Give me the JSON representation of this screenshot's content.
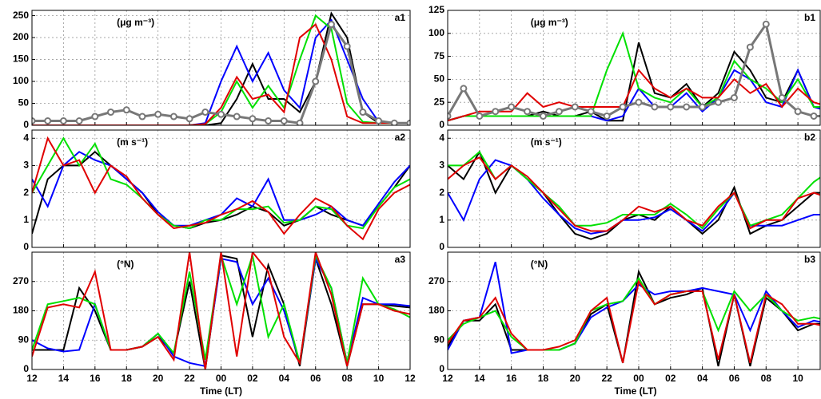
{
  "chart_data": [
    {
      "type": "line",
      "panel_label": "a1",
      "unit": "(μg m⁻³)",
      "x": [
        12,
        13,
        14,
        15,
        16,
        17,
        18,
        19,
        20,
        21,
        22,
        23,
        24,
        25,
        26,
        27,
        28,
        29,
        30,
        31,
        32,
        33,
        34,
        35,
        36
      ],
      "xlim": [
        12,
        36
      ],
      "xticks": [
        12,
        14,
        16,
        18,
        20,
        22,
        24,
        26,
        28,
        30,
        32,
        34
      ],
      "ylim": [
        0,
        262
      ],
      "yticks": [
        0,
        50,
        100,
        150,
        200,
        250
      ],
      "grid": true,
      "series": [
        {
          "color": "#000000",
          "values": [
            0,
            0,
            0,
            0,
            0,
            0,
            0,
            0,
            0,
            0,
            0,
            0,
            5,
            60,
            140,
            60,
            60,
            30,
            100,
            255,
            200,
            30,
            5,
            5,
            5
          ]
        },
        {
          "color": "#0000ff",
          "values": [
            0,
            0,
            0,
            0,
            0,
            0,
            0,
            0,
            0,
            0,
            0,
            5,
            100,
            180,
            100,
            165,
            80,
            40,
            200,
            240,
            150,
            60,
            8,
            5,
            5
          ]
        },
        {
          "color": "#00e000",
          "values": [
            0,
            0,
            0,
            0,
            0,
            0,
            0,
            0,
            0,
            0,
            0,
            3,
            30,
            100,
            40,
            90,
            40,
            150,
            250,
            220,
            50,
            8,
            5,
            5,
            5
          ]
        },
        {
          "color": "#e00000",
          "values": [
            0,
            0,
            0,
            0,
            0,
            0,
            0,
            0,
            0,
            0,
            0,
            3,
            40,
            110,
            60,
            70,
            30,
            200,
            230,
            150,
            20,
            5,
            5,
            5,
            5
          ]
        },
        {
          "color": "#777777",
          "marker": "circle",
          "values": [
            10,
            10,
            10,
            10,
            20,
            30,
            35,
            20,
            25,
            20,
            15,
            30,
            25,
            20,
            15,
            10,
            10,
            5,
            100,
            230,
            180,
            30,
            10,
            5,
            5
          ]
        }
      ]
    },
    {
      "type": "line",
      "panel_label": "a2",
      "unit": "(m s⁻¹)",
      "x": [
        12,
        13,
        14,
        15,
        16,
        17,
        18,
        19,
        20,
        21,
        22,
        23,
        24,
        25,
        26,
        27,
        28,
        29,
        30,
        31,
        32,
        33,
        34,
        35,
        36
      ],
      "xlim": [
        12,
        36
      ],
      "xticks": [
        12,
        14,
        16,
        18,
        20,
        22,
        24,
        26,
        28,
        30,
        32,
        34
      ],
      "ylim": [
        0,
        4.3
      ],
      "yticks": [
        0,
        1,
        2,
        3,
        4
      ],
      "grid": true,
      "series": [
        {
          "color": "#000000",
          "values": [
            0.5,
            2.5,
            3,
            3,
            3.5,
            3,
            2.5,
            2,
            1.2,
            0.8,
            0.7,
            0.9,
            1,
            1.2,
            1.5,
            1.3,
            0.8,
            1,
            1.5,
            1.2,
            1,
            0.8,
            1.5,
            2.2,
            3
          ]
        },
        {
          "color": "#0000ff",
          "values": [
            2.5,
            1.5,
            3,
            3.5,
            3.2,
            3,
            2.5,
            2,
            1.3,
            0.8,
            0.8,
            1,
            1.2,
            1.8,
            1.5,
            2.5,
            1,
            1,
            1.2,
            1.5,
            1,
            0.8,
            1.6,
            2.4,
            3
          ]
        },
        {
          "color": "#00e000",
          "values": [
            2,
            3,
            4,
            3,
            3.8,
            2.5,
            2.3,
            1.8,
            1.2,
            0.8,
            0.7,
            1,
            1,
            1.4,
            1.4,
            1.5,
            0.9,
            1,
            1.5,
            1.4,
            0.8,
            0.7,
            1.5,
            2.2,
            2.5
          ]
        },
        {
          "color": "#e00000",
          "values": [
            2,
            4,
            3,
            3.2,
            2,
            3,
            2.6,
            1.8,
            1.2,
            0.7,
            0.8,
            0.9,
            1.2,
            1.4,
            1.7,
            1.3,
            0.5,
            1.2,
            1.8,
            1.5,
            0.8,
            0.3,
            1.4,
            2,
            2.3
          ]
        }
      ]
    },
    {
      "type": "line",
      "panel_label": "a3",
      "unit": "(°N)",
      "xlabel": "Time (LT)",
      "x": [
        12,
        13,
        14,
        15,
        16,
        17,
        18,
        19,
        20,
        21,
        22,
        23,
        24,
        25,
        26,
        27,
        28,
        29,
        30,
        31,
        32,
        33,
        34,
        35,
        36
      ],
      "xlim": [
        12,
        36
      ],
      "xticks": [
        12,
        14,
        16,
        18,
        20,
        22,
        {
          "value": 24,
          "label": "00"
        },
        {
          "value": 26,
          "label": "02"
        },
        {
          "value": 28,
          "label": "04"
        },
        {
          "value": 30,
          "label": "06"
        },
        {
          "value": 32,
          "label": "08"
        },
        {
          "value": 34,
          "label": "10"
        },
        {
          "value": 36,
          "label": "12"
        }
      ],
      "ylim": [
        0,
        360
      ],
      "yticks": [
        0,
        90,
        180,
        270
      ],
      "grid": true,
      "series": [
        {
          "color": "#000000",
          "values": [
            60,
            60,
            60,
            250,
            180,
            60,
            60,
            70,
            100,
            50,
            270,
            0,
            350,
            340,
            100,
            320,
            200,
            10,
            340,
            200,
            10,
            200,
            200,
            195,
            190
          ]
        },
        {
          "color": "#0000ff",
          "values": [
            90,
            65,
            55,
            60,
            200,
            60,
            60,
            70,
            110,
            40,
            20,
            10,
            340,
            330,
            200,
            280,
            180,
            20,
            340,
            250,
            20,
            220,
            200,
            200,
            195
          ]
        },
        {
          "color": "#00e000",
          "values": [
            60,
            200,
            210,
            220,
            200,
            60,
            60,
            70,
            110,
            50,
            300,
            30,
            350,
            200,
            350,
            100,
            200,
            20,
            350,
            250,
            20,
            280,
            200,
            185,
            160
          ]
        },
        {
          "color": "#e00000",
          "values": [
            40,
            190,
            200,
            190,
            300,
            60,
            60,
            70,
            100,
            30,
            360,
            0,
            360,
            40,
            360,
            300,
            100,
            20,
            360,
            230,
            10,
            200,
            200,
            180,
            170
          ]
        }
      ]
    },
    {
      "type": "line",
      "panel_label": "b1",
      "unit": "(μg m⁻³)",
      "x": [
        12,
        13,
        14,
        15,
        16,
        17,
        18,
        19,
        20,
        21,
        22,
        23,
        24,
        25,
        26,
        27,
        28,
        29,
        30,
        31,
        32,
        33,
        34,
        35,
        36
      ],
      "xlim": [
        12,
        35.4
      ],
      "xticks": [
        12,
        14,
        16,
        18,
        20,
        22,
        24,
        26,
        28,
        30,
        32,
        34
      ],
      "ylim": [
        0,
        125
      ],
      "yticks": [
        0,
        25,
        50,
        75,
        100,
        125
      ],
      "grid": true,
      "series": [
        {
          "color": "#000000",
          "values": [
            5,
            10,
            10,
            10,
            10,
            10,
            15,
            10,
            10,
            15,
            5,
            5,
            90,
            35,
            30,
            45,
            20,
            35,
            80,
            60,
            30,
            25,
            60,
            20,
            20
          ]
        },
        {
          "color": "#0000ff",
          "values": [
            5,
            10,
            10,
            10,
            10,
            10,
            10,
            10,
            10,
            10,
            5,
            10,
            40,
            20,
            20,
            35,
            15,
            30,
            60,
            50,
            25,
            20,
            60,
            20,
            15
          ]
        },
        {
          "color": "#00e000",
          "values": [
            5,
            10,
            10,
            10,
            10,
            10,
            10,
            10,
            10,
            10,
            60,
            100,
            40,
            30,
            25,
            40,
            20,
            30,
            70,
            50,
            40,
            25,
            50,
            20,
            20
          ]
        },
        {
          "color": "#e00000",
          "values": [
            5,
            10,
            15,
            15,
            15,
            35,
            20,
            25,
            20,
            20,
            20,
            20,
            60,
            40,
            30,
            40,
            30,
            30,
            50,
            35,
            45,
            20,
            40,
            25,
            20
          ]
        },
        {
          "color": "#777777",
          "marker": "circle",
          "values": [
            10,
            40,
            10,
            15,
            20,
            15,
            10,
            15,
            20,
            15,
            10,
            20,
            25,
            20,
            20,
            20,
            20,
            25,
            30,
            85,
            110,
            30,
            15,
            10,
            10
          ]
        }
      ]
    },
    {
      "type": "line",
      "panel_label": "b2",
      "unit": "(m s⁻¹)",
      "x": [
        12,
        13,
        14,
        15,
        16,
        17,
        18,
        19,
        20,
        21,
        22,
        23,
        24,
        25,
        26,
        27,
        28,
        29,
        30,
        31,
        32,
        33,
        34,
        35,
        36
      ],
      "xlim": [
        12,
        35.4
      ],
      "xticks": [
        12,
        14,
        16,
        18,
        20,
        22,
        24,
        26,
        28,
        30,
        32,
        34
      ],
      "ylim": [
        0,
        4.3
      ],
      "yticks": [
        0,
        1,
        2,
        3,
        4
      ],
      "grid": true,
      "series": [
        {
          "color": "#000000",
          "values": [
            3,
            2.5,
            3.5,
            2,
            3,
            2.5,
            2,
            1.2,
            0.5,
            0.3,
            0.5,
            1,
            1.2,
            1,
            1.5,
            1,
            0.5,
            1,
            2.2,
            0.5,
            0.8,
            1,
            1.5,
            2,
            2
          ]
        },
        {
          "color": "#0000ff",
          "values": [
            2,
            1,
            2.5,
            3.2,
            3,
            2.5,
            1.8,
            1.2,
            0.7,
            0.5,
            0.6,
            1,
            1,
            1.1,
            1.4,
            1,
            0.6,
            1.2,
            2,
            0.8,
            0.8,
            0.8,
            1,
            1.2,
            1.2
          ]
        },
        {
          "color": "#00e000",
          "values": [
            3,
            3,
            3.5,
            2.5,
            3,
            2.5,
            2,
            1.5,
            0.8,
            0.8,
            0.9,
            1.2,
            1.2,
            1.2,
            1.6,
            1.2,
            0.7,
            1.4,
            2,
            0.8,
            1,
            1.2,
            1.8,
            2.4,
            2.8
          ]
        },
        {
          "color": "#e00000",
          "values": [
            2.5,
            3,
            3.3,
            2.5,
            3,
            2.6,
            2,
            1.4,
            0.8,
            0.6,
            0.6,
            1,
            1.5,
            1.3,
            1.5,
            1,
            0.8,
            1.5,
            2,
            0.7,
            1,
            1,
            1.8,
            2,
            1.8
          ]
        }
      ]
    },
    {
      "type": "line",
      "panel_label": "b3",
      "unit": "(°N)",
      "xlabel": "Time (LT)",
      "x": [
        12,
        13,
        14,
        15,
        16,
        17,
        18,
        19,
        20,
        21,
        22,
        23,
        24,
        25,
        26,
        27,
        28,
        29,
        30,
        31,
        32,
        33,
        34,
        35,
        36
      ],
      "xlim": [
        12,
        35.4
      ],
      "xticks": [
        12,
        14,
        16,
        18,
        20,
        22,
        {
          "value": 24,
          "label": "00"
        },
        {
          "value": 26,
          "label": "02"
        },
        {
          "value": 28,
          "label": "04"
        },
        {
          "value": 30,
          "label": "06"
        },
        {
          "value": 32,
          "label": "08"
        },
        {
          "value": 34,
          "label": "10"
        }
      ],
      "ylim": [
        0,
        360
      ],
      "yticks": [
        0,
        90,
        180,
        270
      ],
      "grid": true,
      "series": [
        {
          "color": "#000000",
          "values": [
            70,
            150,
            150,
            200,
            60,
            60,
            60,
            60,
            80,
            170,
            200,
            20,
            300,
            200,
            220,
            230,
            250,
            10,
            230,
            10,
            220,
            180,
            120,
            140,
            140
          ]
        },
        {
          "color": "#0000ff",
          "values": [
            60,
            150,
            160,
            330,
            50,
            60,
            60,
            60,
            80,
            160,
            190,
            210,
            260,
            230,
            240,
            240,
            250,
            240,
            230,
            120,
            240,
            180,
            130,
            150,
            140
          ]
        },
        {
          "color": "#00e000",
          "values": [
            90,
            140,
            160,
            180,
            100,
            60,
            60,
            60,
            80,
            180,
            200,
            210,
            280,
            200,
            230,
            240,
            240,
            120,
            240,
            180,
            230,
            180,
            150,
            160,
            150
          ]
        },
        {
          "color": "#e00000",
          "values": [
            80,
            150,
            160,
            220,
            110,
            60,
            60,
            70,
            90,
            180,
            220,
            20,
            270,
            200,
            230,
            240,
            240,
            30,
            230,
            20,
            230,
            200,
            140,
            140,
            130
          ]
        }
      ]
    }
  ]
}
